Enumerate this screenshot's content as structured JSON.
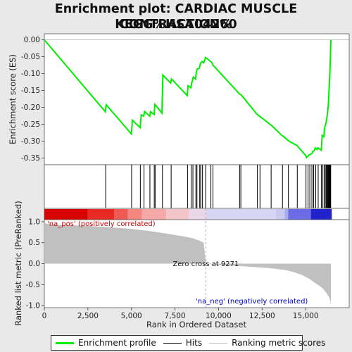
{
  "chart_data": {
    "type": "line",
    "title_line1": "Enrichment plot: CARDIAC MUSCLE CONTRACTION%",
    "title_line2": "KEGG%HSA04260",
    "es_panel": {
      "ylabel": "Enrichment score (ES)",
      "ylim": [
        -0.37,
        0.018
      ],
      "yticks": [
        "0.00",
        "-0.05",
        "-0.10",
        "-0.15",
        "-0.20",
        "-0.25",
        "-0.30",
        "-0.35"
      ],
      "ytick_values": [
        0.0,
        -0.05,
        -0.1,
        -0.15,
        -0.2,
        -0.25,
        -0.3,
        -0.35
      ],
      "series_color": "#00ee00",
      "points": [
        [
          0,
          0.0
        ],
        [
          3500,
          -0.213
        ],
        [
          3550,
          -0.192
        ],
        [
          5000,
          -0.279
        ],
        [
          5050,
          -0.238
        ],
        [
          5500,
          -0.26
        ],
        [
          5560,
          -0.222
        ],
        [
          5700,
          -0.226
        ],
        [
          5760,
          -0.212
        ],
        [
          6050,
          -0.226
        ],
        [
          6100,
          -0.213
        ],
        [
          6300,
          -0.221
        ],
        [
          6350,
          -0.191
        ],
        [
          6750,
          -0.217
        ],
        [
          6800,
          -0.104
        ],
        [
          7250,
          -0.128
        ],
        [
          7300,
          -0.116
        ],
        [
          8200,
          -0.165
        ],
        [
          8250,
          -0.136
        ],
        [
          8420,
          -0.142
        ],
        [
          8450,
          -0.128
        ],
        [
          8500,
          -0.122
        ],
        [
          8550,
          -0.11
        ],
        [
          8680,
          -0.116
        ],
        [
          8720,
          -0.096
        ],
        [
          8780,
          -0.086
        ],
        [
          8900,
          -0.084
        ],
        [
          8950,
          -0.072
        ],
        [
          9050,
          -0.064
        ],
        [
          9150,
          -0.068
        ],
        [
          9250,
          -0.052
        ],
        [
          9600,
          -0.066
        ],
        [
          9700,
          -0.076
        ],
        [
          11200,
          -0.16
        ],
        [
          11300,
          -0.163
        ],
        [
          12200,
          -0.22
        ],
        [
          12400,
          -0.228
        ],
        [
          13000,
          -0.252
        ],
        [
          13100,
          -0.256
        ],
        [
          13650,
          -0.284
        ],
        [
          13700,
          -0.285
        ],
        [
          14000,
          -0.298
        ],
        [
          14100,
          -0.302
        ],
        [
          14500,
          -0.313
        ],
        [
          15000,
          -0.342
        ],
        [
          15050,
          -0.349
        ],
        [
          15200,
          -0.341
        ],
        [
          15300,
          -0.338
        ],
        [
          15380,
          -0.336
        ],
        [
          15420,
          -0.33
        ],
        [
          15500,
          -0.328
        ],
        [
          15550,
          -0.32
        ],
        [
          15650,
          -0.325
        ],
        [
          15700,
          -0.32
        ],
        [
          15900,
          -0.327
        ],
        [
          15950,
          -0.283
        ],
        [
          16050,
          -0.287
        ],
        [
          16080,
          -0.262
        ],
        [
          16150,
          -0.25
        ],
        [
          16200,
          -0.238
        ],
        [
          16250,
          -0.22
        ],
        [
          16300,
          -0.195
        ],
        [
          16330,
          -0.165
        ],
        [
          16360,
          -0.13
        ],
        [
          16390,
          -0.1
        ],
        [
          16410,
          -0.07
        ],
        [
          16430,
          -0.04
        ],
        [
          16450,
          0.0
        ]
      ]
    },
    "hits": [
      3520,
      5010,
      5510,
      5720,
      6060,
      6310,
      6360,
      6780,
      7280,
      8220,
      8430,
      8530,
      8700,
      8760,
      8920,
      8980,
      9080,
      9260,
      9560,
      9680,
      11210,
      11280,
      12230,
      12380,
      13020,
      13670,
      14010,
      14520,
      15020,
      15140,
      15240,
      15360,
      15460,
      15580,
      15720,
      15900,
      15990,
      16070,
      16130,
      16190,
      16230,
      16270,
      16300,
      16330,
      16360,
      16390,
      16420,
      16440
    ],
    "heatmap": {
      "colors": [
        "#d90000",
        "#e82a22",
        "#ef5a55",
        "#f48682",
        "#f6a8a6",
        "#f3c5c8",
        "#e9d6e6",
        "#d6d6f4",
        "#c8c8f2",
        "#aaaaf0",
        "#6c6ce6",
        "#2222cc"
      ],
      "bounds": [
        0,
        2500,
        4000,
        4800,
        5600,
        7000,
        8300,
        9300,
        13300,
        13800,
        14000,
        15300,
        16500
      ]
    },
    "ranked_panel": {
      "ylabel": "Ranked list metric (PreRanked)",
      "xlabel": "Rank in Ordered Dataset",
      "ylim": [
        -1.05,
        1.05
      ],
      "yticks": [
        "1.0",
        "0.5",
        "0.0",
        "-0.5",
        "-1.0"
      ],
      "ytick_values": [
        1.0,
        0.5,
        0.0,
        -0.5,
        -1.0
      ],
      "xticks": [
        "0",
        "2,500",
        "5,000",
        "7,500",
        "10,000",
        "12,500",
        "15,000"
      ],
      "xtick_values": [
        0,
        2500,
        5000,
        7500,
        10000,
        12500,
        15000
      ],
      "xlim": [
        0,
        17500
      ],
      "fill_color": "#c0c0c0",
      "profile": [
        [
          0,
          1.0
        ],
        [
          50,
          0.97
        ],
        [
          200,
          0.95
        ],
        [
          600,
          0.93
        ],
        [
          1200,
          0.92
        ],
        [
          2000,
          0.91
        ],
        [
          3000,
          0.89
        ],
        [
          4000,
          0.86
        ],
        [
          5000,
          0.83
        ],
        [
          5600,
          0.8
        ],
        [
          6200,
          0.77
        ],
        [
          6800,
          0.73
        ],
        [
          7400,
          0.69
        ],
        [
          8000,
          0.65
        ],
        [
          8500,
          0.61
        ],
        [
          8900,
          0.55
        ],
        [
          9150,
          0.5
        ],
        [
          9271,
          0.0
        ],
        [
          10000,
          -0.03
        ],
        [
          11000,
          -0.05
        ],
        [
          12000,
          -0.08
        ],
        [
          13000,
          -0.11
        ],
        [
          13800,
          -0.15
        ],
        [
          14300,
          -0.2
        ],
        [
          14800,
          -0.27
        ],
        [
          15200,
          -0.36
        ],
        [
          15500,
          -0.45
        ],
        [
          15800,
          -0.53
        ],
        [
          16000,
          -0.6
        ],
        [
          16200,
          -0.7
        ],
        [
          16350,
          -0.8
        ],
        [
          16420,
          -0.9
        ],
        [
          16450,
          -1.0
        ]
      ],
      "zero_cross_label": "Zero cross at 9271",
      "zero_cross_value": 9271,
      "pos_label": "'na_pos' (positively correlated)",
      "neg_label": "'na_neg' (negatively correlated)",
      "pos_color": "#cc0000",
      "neg_color": "#0000cc"
    },
    "legend": [
      {
        "label": "Enrichment profile",
        "color": "#00ee00",
        "style": "solid-thick"
      },
      {
        "label": "Hits",
        "color": "#000000",
        "style": "solid"
      },
      {
        "label": "Ranking metric scores",
        "color": "#c0c0c0",
        "style": "solid"
      }
    ]
  }
}
